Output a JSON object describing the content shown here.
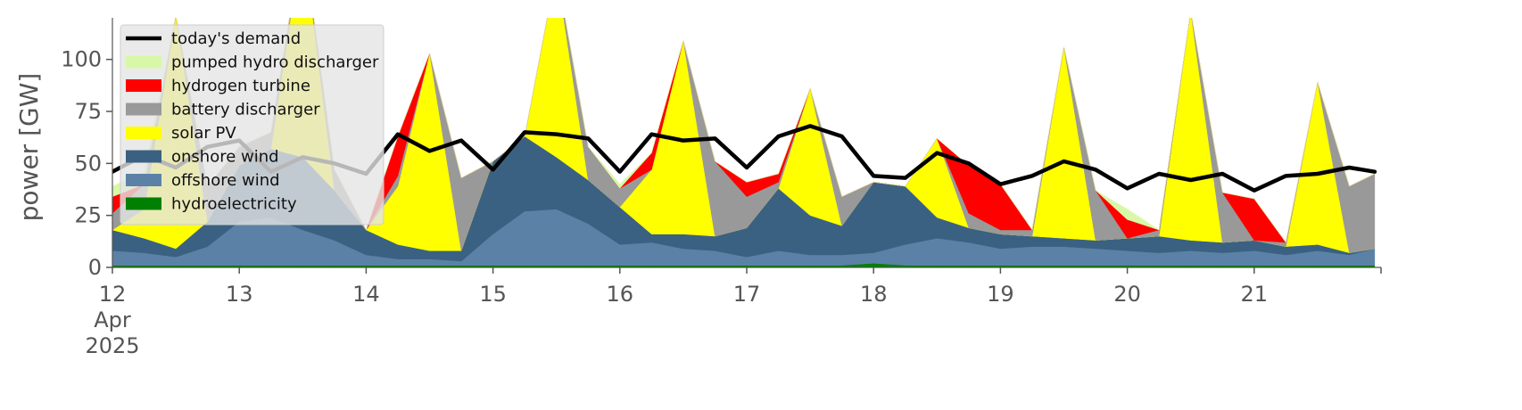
{
  "chart_data": {
    "type": "area",
    "ylabel": "power [GW]",
    "ylim": [
      0,
      120
    ],
    "yticks": [
      0,
      25,
      50,
      75,
      100
    ],
    "xlim": [
      12,
      22
    ],
    "xticks": [
      {
        "x": 12,
        "lines": [
          "12",
          "Apr",
          "2025"
        ]
      },
      {
        "x": 13,
        "lines": [
          "13"
        ]
      },
      {
        "x": 14,
        "lines": [
          "14"
        ]
      },
      {
        "x": 15,
        "lines": [
          "15"
        ]
      },
      {
        "x": 16,
        "lines": [
          "16"
        ]
      },
      {
        "x": 17,
        "lines": [
          "17"
        ]
      },
      {
        "x": 18,
        "lines": [
          "18"
        ]
      },
      {
        "x": 19,
        "lines": [
          "19"
        ]
      },
      {
        "x": 20,
        "lines": [
          "20"
        ]
      },
      {
        "x": 21,
        "lines": [
          "21"
        ]
      }
    ],
    "grid": false,
    "legend_placement": "top-left",
    "legend": [
      {
        "label": "today's demand",
        "kind": "line",
        "color": "#000000"
      },
      {
        "label": "pumped hydro discharger",
        "kind": "patch",
        "color": "#d8f8a8"
      },
      {
        "label": "hydrogen turbine",
        "kind": "patch",
        "color": "#ff0000"
      },
      {
        "label": "battery discharger",
        "kind": "patch",
        "color": "#999999"
      },
      {
        "label": "solar PV",
        "kind": "patch",
        "color": "#ffff00"
      },
      {
        "label": "onshore wind",
        "kind": "patch",
        "color": "#3b6182"
      },
      {
        "label": "offshore wind",
        "kind": "patch",
        "color": "#5b82a6"
      },
      {
        "label": "hydroelectricity",
        "kind": "patch",
        "color": "#008000"
      }
    ],
    "x": [
      12.0,
      12.25,
      12.5,
      12.75,
      13.0,
      13.25,
      13.5,
      13.75,
      14.0,
      14.25,
      14.5,
      14.75,
      15.0,
      15.25,
      15.5,
      15.75,
      16.0,
      16.25,
      16.5,
      16.75,
      17.0,
      17.25,
      17.5,
      17.75,
      18.0,
      18.25,
      18.5,
      18.75,
      19.0,
      19.25,
      19.5,
      19.75,
      20.0,
      20.25,
      20.5,
      20.75,
      21.0,
      21.25,
      21.5,
      21.75,
      21.95
    ],
    "stack_series": [
      {
        "name": "hydroelectricity",
        "color": "#008000",
        "values": [
          1,
          1,
          1,
          1,
          1,
          1,
          1,
          1,
          1,
          1,
          1,
          1,
          1,
          1,
          1,
          1,
          1,
          1,
          1,
          1,
          1,
          1,
          1,
          1,
          2,
          1,
          1,
          1,
          1,
          1,
          1,
          1,
          1,
          1,
          1,
          1,
          1,
          1,
          1,
          1,
          1
        ]
      },
      {
        "name": "offshore wind",
        "color": "#5b82a6",
        "values": [
          7,
          6,
          4,
          9,
          21,
          23,
          17,
          12,
          5,
          3,
          3,
          2,
          15,
          26,
          27,
          20,
          10,
          11,
          8,
          7,
          4,
          7,
          5,
          5,
          5,
          10,
          13,
          11,
          8,
          9,
          9,
          8,
          7,
          6,
          7,
          6,
          7,
          5,
          7,
          5,
          8
        ]
      },
      {
        "name": "onshore wind",
        "color": "#3b6182",
        "values": [
          10,
          7,
          4,
          12,
          27,
          33,
          35,
          24,
          12,
          7,
          4,
          5,
          35,
          36,
          25,
          21,
          18,
          4,
          7,
          7,
          14,
          30,
          19,
          14,
          34,
          28,
          10,
          7,
          7,
          5,
          4,
          4,
          6,
          8,
          5,
          5,
          5,
          4,
          3,
          1,
          0
        ]
      },
      {
        "name": "solar PV",
        "color": "#ffff00",
        "values": [
          0,
          14,
          112,
          0,
          0,
          0,
          106,
          0,
          0,
          28,
          95,
          0,
          0,
          0,
          90,
          0,
          0,
          31,
          93,
          0,
          0,
          0,
          61,
          0,
          0,
          0,
          38,
          0,
          0,
          0,
          92,
          0,
          0,
          0,
          110,
          0,
          0,
          0,
          78,
          0,
          0
        ]
      },
      {
        "name": "battery discharger",
        "color": "#999999",
        "values": [
          8,
          12,
          0,
          17,
          9,
          8,
          0,
          10,
          0,
          5,
          0,
          35,
          0,
          0,
          0,
          16,
          9,
          0,
          0,
          36,
          15,
          3,
          0,
          14,
          0,
          0,
          0,
          7,
          2,
          3,
          0,
          24,
          0,
          3,
          0,
          24,
          0,
          2,
          0,
          32,
          36
        ]
      },
      {
        "name": "hydrogen turbine",
        "color": "#ff0000",
        "values": [
          8,
          0,
          0,
          0,
          0,
          0,
          0,
          0,
          0,
          19,
          0,
          0,
          0,
          0,
          0,
          0,
          0,
          8,
          0,
          0,
          7,
          4,
          0,
          0,
          0,
          0,
          0,
          23,
          22,
          0,
          0,
          0,
          9,
          0,
          0,
          0,
          20,
          0,
          0,
          0,
          0
        ]
      },
      {
        "name": "pumped hydro discharger",
        "color": "#d8f8a8",
        "values": [
          5,
          6,
          0,
          0,
          0,
          0,
          0,
          0,
          0,
          0,
          0,
          0,
          0,
          0,
          0,
          0,
          2,
          0,
          0,
          0,
          0,
          0,
          0,
          0,
          0,
          0,
          0,
          0,
          0,
          0,
          0,
          0,
          5,
          0,
          0,
          0,
          0,
          0,
          0,
          0,
          0
        ]
      }
    ],
    "line_series": [
      {
        "name": "today's demand",
        "color": "#000000",
        "values": [
          46,
          54,
          48,
          58,
          61,
          46,
          53,
          50,
          45,
          64,
          56,
          61,
          47,
          65,
          64,
          62,
          46,
          64,
          61,
          62,
          48,
          63,
          68,
          63,
          44,
          43,
          55,
          50,
          40,
          44,
          51,
          47,
          38,
          45,
          42,
          45,
          37,
          44,
          45,
          48,
          46
        ]
      }
    ]
  }
}
